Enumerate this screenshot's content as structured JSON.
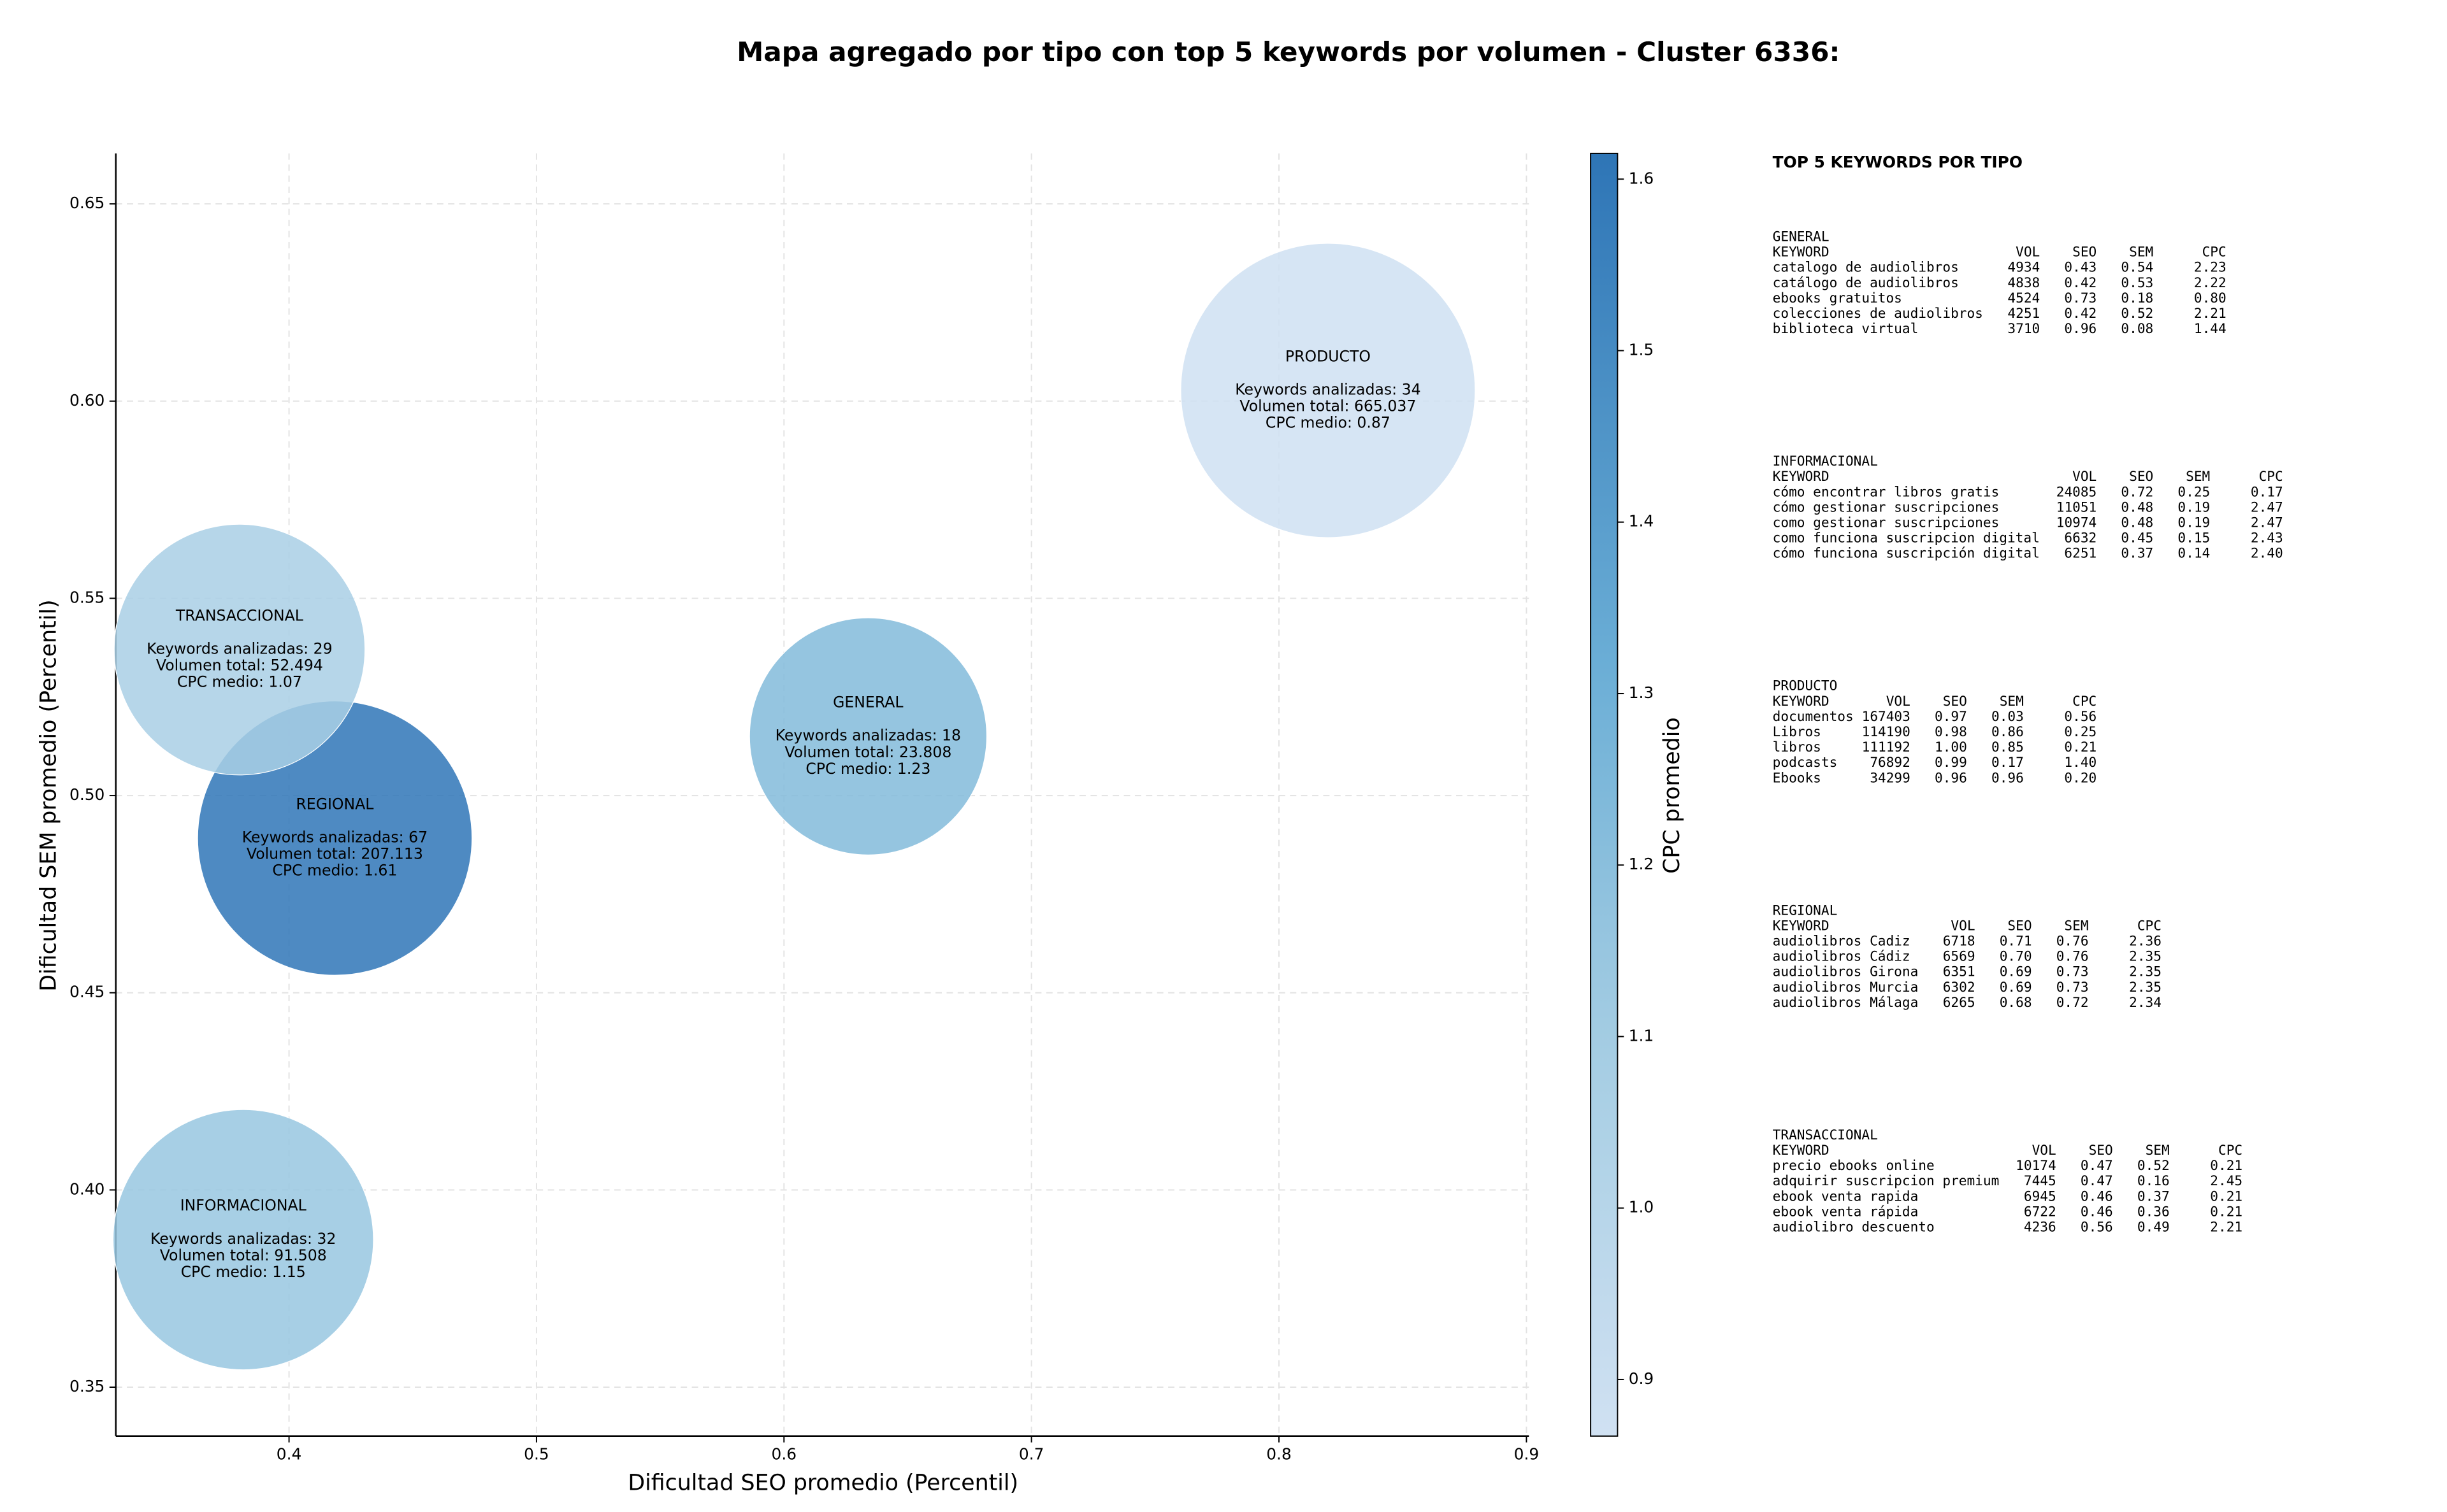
{
  "chart_data": {
    "type": "bubble",
    "title": "Mapa agregado por tipo con top 5 keywords por volumen - Cluster 6336:",
    "xlabel": "Dificultad SEO promedio (Percentil)",
    "ylabel": "Dificultad SEM promedio (Percentil)",
    "categories": [
      "GENERAL",
      "INFORMACIONAL",
      "PRODUCTO",
      "REGIONAL",
      "TRANSACCIONAL"
    ],
    "x": [
      0.634,
      0.3815,
      0.8198,
      0.4185,
      0.38
    ],
    "values": [
      0.515,
      0.3874,
      0.6027,
      0.4892,
      0.537
    ],
    "sizes": [
      23808,
      91508,
      665037,
      207113,
      52494
    ],
    "cpc": [
      1.23,
      1.15,
      0.87,
      1.61,
      1.07
    ],
    "point_labels": [
      [
        "Keywords analizadas: 18",
        "Volumen total: 23.808",
        "CPC medio: 1.23"
      ],
      [
        "Keywords analizadas: 32",
        "Volumen total: 91.508",
        "CPC medio: 1.15"
      ],
      [
        "Keywords analizadas: 34",
        "Volumen total: 665.037",
        "CPC medio: 0.87"
      ],
      [
        "Keywords analizadas: 67",
        "Volumen total: 207.113",
        "CPC medio: 1.61"
      ],
      [
        "Keywords analizadas: 29",
        "Volumen total: 52.494",
        "CPC medio: 1.07"
      ]
    ],
    "xlim": [
      0.33,
      0.901
    ],
    "ylim": [
      0.3376,
      0.6628
    ],
    "xticks": [
      0.4,
      0.5,
      0.6,
      0.7,
      0.8,
      0.9
    ],
    "yticks": [
      0.35,
      {
        "value": 0.4,
        "label": "0.40"
      },
      0.45,
      {
        "value": 0.5,
        "label": "0.50"
      },
      0.55,
      {
        "value": 0.6,
        "label": "0.60"
      },
      0.65
    ],
    "grid": true,
    "colormap": "Blues",
    "colorbar_label": "CPC promedio",
    "clim": [
      0.867,
      1.615
    ],
    "cticks": [
      0.9,
      {
        "value": 1,
        "label": "1.0"
      },
      1.1,
      1.2,
      1.3,
      1.4,
      1.5,
      1.6
    ]
  },
  "panel": {
    "title": "TOP 5 KEYWORDS POR TIPO",
    "columns": [
      "KEYWORD",
      "VOL",
      "SEO",
      "SEM",
      "CPC"
    ],
    "sections": [
      {
        "name": "GENERAL",
        "rows": [
          [
            "catalogo de audiolibros",
            "4934",
            "0.43",
            "0.54",
            "2.23"
          ],
          [
            "catálogo de audiolibros",
            "4838",
            "0.42",
            "0.53",
            "2.22"
          ],
          [
            "ebooks gratuitos",
            "4524",
            "0.73",
            "0.18",
            "0.80"
          ],
          [
            "colecciones de audiolibros",
            "4251",
            "0.42",
            "0.52",
            "2.21"
          ],
          [
            "biblioteca virtual",
            "3710",
            "0.96",
            "0.08",
            "1.44"
          ]
        ]
      },
      {
        "name": "INFORMACIONAL",
        "rows": [
          [
            "cómo encontrar libros gratis",
            "24085",
            "0.72",
            "0.25",
            "0.17"
          ],
          [
            "cómo gestionar suscripciones",
            "11051",
            "0.48",
            "0.19",
            "2.47"
          ],
          [
            "como gestionar suscripciones",
            "10974",
            "0.48",
            "0.19",
            "2.47"
          ],
          [
            "como funciona suscripcion digital",
            "6632",
            "0.45",
            "0.15",
            "2.43"
          ],
          [
            "cómo funciona suscripción digital",
            "6251",
            "0.37",
            "0.14",
            "2.40"
          ]
        ]
      },
      {
        "name": "PRODUCTO",
        "rows": [
          [
            "documentos",
            "167403",
            "0.97",
            "0.03",
            "0.56"
          ],
          [
            "Libros",
            "114190",
            "0.98",
            "0.86",
            "0.25"
          ],
          [
            "libros",
            "111192",
            "1.00",
            "0.85",
            "0.21"
          ],
          [
            "podcasts",
            "76892",
            "0.99",
            "0.17",
            "1.40"
          ],
          [
            "Ebooks",
            "34299",
            "0.96",
            "0.96",
            "0.20"
          ]
        ]
      },
      {
        "name": "REGIONAL",
        "rows": [
          [
            "audiolibros Cadiz",
            "6718",
            "0.71",
            "0.76",
            "2.36"
          ],
          [
            "audiolibros Cádiz",
            "6569",
            "0.70",
            "0.76",
            "2.35"
          ],
          [
            "audiolibros Girona",
            "6351",
            "0.69",
            "0.73",
            "2.35"
          ],
          [
            "audiolibros Murcia",
            "6302",
            "0.69",
            "0.73",
            "2.35"
          ],
          [
            "audiolibros Málaga",
            "6265",
            "0.68",
            "0.72",
            "2.34"
          ]
        ]
      },
      {
        "name": "TRANSACCIONAL",
        "rows": [
          [
            "precio ebooks online",
            "10174",
            "0.47",
            "0.52",
            "0.21"
          ],
          [
            "adquirir suscripcion premium",
            "7445",
            "0.47",
            "0.16",
            "2.45"
          ],
          [
            "ebook venta rapida",
            "6945",
            "0.46",
            "0.37",
            "0.21"
          ],
          [
            "ebook venta rápida",
            "6722",
            "0.46",
            "0.36",
            "0.21"
          ],
          [
            "audiolibro descuento",
            "4236",
            "0.56",
            "0.49",
            "2.21"
          ]
        ]
      }
    ]
  }
}
